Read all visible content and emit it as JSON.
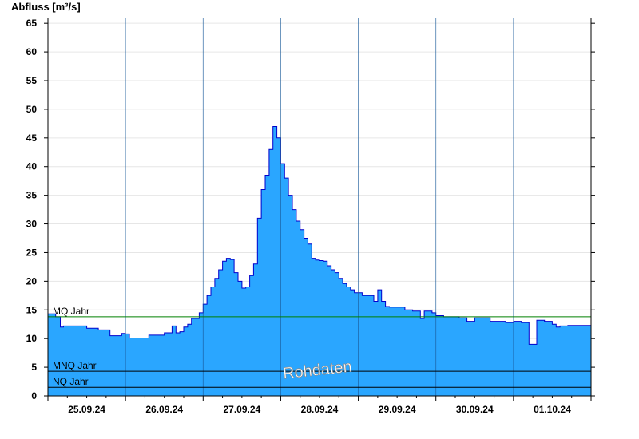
{
  "chart_data": {
    "type": "area",
    "title": "Abfluss [m³/s]",
    "ylim": [
      0,
      66
    ],
    "y_ticks": [
      0,
      5,
      10,
      15,
      20,
      25,
      30,
      35,
      40,
      45,
      50,
      55,
      60,
      65
    ],
    "x_tick_labels": [
      "25.09.24",
      "26.09.24",
      "27.09.24",
      "28.09.24",
      "29.09.24",
      "30.09.24",
      "01.10.24"
    ],
    "xlim_days": [
      0,
      7
    ],
    "fill_color": "#2aa6ff",
    "line_color": "#0000cc",
    "grid": true,
    "series": [
      {
        "x": [
          0.0,
          0.1,
          0.16,
          0.2,
          0.35,
          0.5,
          0.6,
          0.65,
          0.8,
          0.9,
          0.95,
          1.0,
          1.05,
          1.15,
          1.2,
          1.3,
          1.4,
          1.5,
          1.6,
          1.65,
          1.7,
          1.75,
          1.8,
          1.85,
          1.95,
          2.0,
          2.05,
          2.1,
          2.15,
          2.2,
          2.25,
          2.3,
          2.35,
          2.4,
          2.45,
          2.5,
          2.55,
          2.6,
          2.65,
          2.7,
          2.75,
          2.8,
          2.85,
          2.9,
          2.95,
          3.0,
          3.05,
          3.1,
          3.15,
          3.2,
          3.25,
          3.3,
          3.35,
          3.4,
          3.45,
          3.5,
          3.55,
          3.6,
          3.65,
          3.7,
          3.75,
          3.8,
          3.85,
          3.9,
          3.95,
          4.0,
          4.05,
          4.1,
          4.15,
          4.2,
          4.25,
          4.3,
          4.35,
          4.4,
          4.5,
          4.6,
          4.7,
          4.75,
          4.8,
          4.85,
          4.9,
          4.95,
          5.0,
          5.1,
          5.2,
          5.3,
          5.4,
          5.5,
          5.6,
          5.7,
          5.75,
          5.8,
          5.9,
          6.0,
          6.1,
          6.2,
          6.3,
          6.4,
          6.45,
          6.5,
          6.55,
          6.6,
          6.7,
          6.8,
          6.9,
          7.0
        ],
        "y": [
          14.3,
          13.8,
          12.0,
          12.2,
          12.2,
          11.8,
          11.8,
          11.5,
          10.5,
          10.5,
          10.9,
          10.8,
          10.1,
          10.1,
          10.1,
          10.6,
          10.6,
          11.0,
          12.2,
          11.0,
          11.2,
          12.0,
          12.5,
          13.5,
          14.5,
          16.0,
          17.5,
          19.0,
          20.5,
          22.0,
          23.5,
          24.0,
          23.8,
          21.5,
          20.0,
          18.8,
          19.0,
          21.0,
          23.0,
          31.0,
          36.0,
          38.5,
          43.0,
          47.0,
          45.0,
          40.5,
          38.0,
          35.0,
          32.5,
          30.5,
          29.0,
          27.5,
          26.5,
          24.0,
          23.7,
          23.6,
          23.5,
          22.7,
          22.0,
          21.5,
          20.5,
          19.6,
          19.0,
          18.5,
          18.0,
          18.0,
          17.5,
          17.5,
          17.5,
          16.5,
          18.5,
          16.5,
          15.6,
          15.5,
          15.5,
          15.0,
          14.8,
          14.8,
          13.5,
          14.8,
          14.8,
          14.5,
          14.0,
          13.8,
          13.8,
          13.6,
          13.0,
          13.6,
          13.6,
          13.0,
          13.0,
          13.0,
          12.8,
          13.0,
          12.8,
          9.0,
          13.2,
          13.0,
          13.0,
          12.5,
          12.0,
          12.2,
          12.3,
          12.3,
          12.3,
          12.3
        ]
      }
    ],
    "reference_lines": [
      {
        "label": "MQ Jahr",
        "value": 13.8,
        "color": "#008000"
      },
      {
        "label": "MNQ Jahr",
        "value": 4.3,
        "color": "#000000"
      },
      {
        "label": "NQ Jahr",
        "value": 1.5,
        "color": "#000000"
      }
    ],
    "annotation": "Rohdaten"
  }
}
